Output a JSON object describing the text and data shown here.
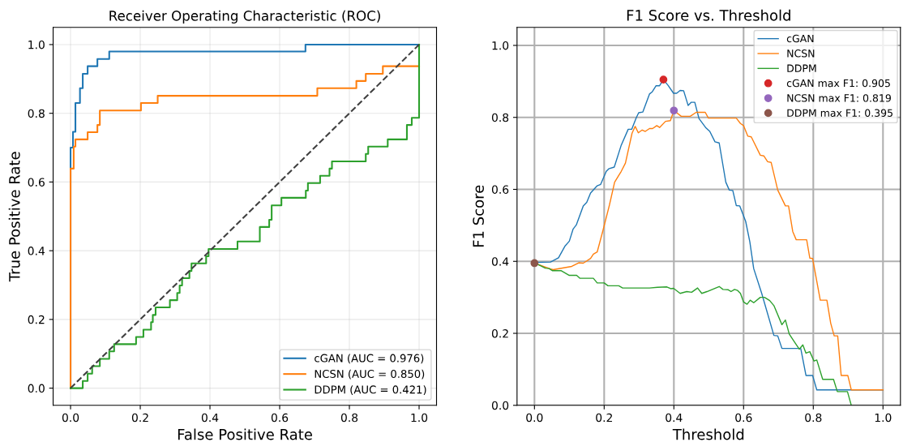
{
  "chart_data": [
    {
      "type": "line",
      "title": "Receiver Operating Characteristic (ROC)",
      "xlabel": "False Positive Rate",
      "ylabel": "True Positive Rate",
      "xlim": [
        -0.05,
        1.05
      ],
      "ylim": [
        -0.05,
        1.05
      ],
      "xticks": [
        {
          "value": 0,
          "label": "0.0"
        },
        {
          "value": 0.2,
          "label": "0.2"
        },
        {
          "value": 0.4,
          "label": "0.4"
        },
        {
          "value": 0.6,
          "label": "0.6"
        },
        {
          "value": 0.8,
          "label": "0.8"
        },
        {
          "value": 1,
          "label": "1.0"
        }
      ],
      "yticks": [
        {
          "value": 0,
          "label": "0.0"
        },
        {
          "value": 0.2,
          "label": "0.2"
        },
        {
          "value": 0.4,
          "label": "0.4"
        },
        {
          "value": 0.6,
          "label": "0.6"
        },
        {
          "value": 0.8,
          "label": "0.8"
        },
        {
          "value": 1,
          "label": "1.0"
        }
      ],
      "grid": true,
      "legend": "bottom right",
      "series": [
        {
          "name": "cGAN (AUC = 0.976)",
          "color": "#1f77b4",
          "x": [
            0,
            0,
            0.007,
            0.007,
            0.014,
            0.014,
            0.027,
            0.027,
            0.035,
            0.035,
            0.049,
            0.049,
            0.077,
            0.077,
            0.111,
            0.111,
            0.674,
            0.674,
            1.0
          ],
          "values": [
            0,
            0.7,
            0.7,
            0.746,
            0.746,
            0.83,
            0.83,
            0.873,
            0.873,
            0.915,
            0.915,
            0.937,
            0.937,
            0.958,
            0.958,
            0.98,
            0.98,
            1.0,
            1.0
          ]
        },
        {
          "name": "NCSN (AUC = 0.850)",
          "color": "#ff7f0e",
          "x": [
            0,
            0,
            0.009,
            0.009,
            0.014,
            0.014,
            0.049,
            0.049,
            0.077,
            0.077,
            0.084,
            0.084,
            0.202,
            0.202,
            0.25,
            0.25,
            0.708,
            0.708,
            0.82,
            0.82,
            0.847,
            0.847,
            0.896,
            0.896,
            1.0
          ],
          "values": [
            0,
            0.639,
            0.639,
            0.703,
            0.703,
            0.724,
            0.724,
            0.745,
            0.745,
            0.766,
            0.766,
            0.808,
            0.808,
            0.83,
            0.83,
            0.851,
            0.851,
            0.873,
            0.873,
            0.894,
            0.894,
            0.915,
            0.915,
            0.937,
            0.937
          ]
        },
        {
          "name": "DDPM (AUC = 0.421)",
          "color": "#2ca02c",
          "x": [
            0,
            0.035,
            0.035,
            0.049,
            0.049,
            0.062,
            0.062,
            0.084,
            0.084,
            0.111,
            0.111,
            0.125,
            0.125,
            0.188,
            0.188,
            0.209,
            0.209,
            0.231,
            0.231,
            0.236,
            0.236,
            0.244,
            0.244,
            0.285,
            0.285,
            0.306,
            0.306,
            0.313,
            0.313,
            0.32,
            0.32,
            0.341,
            0.341,
            0.347,
            0.347,
            0.389,
            0.389,
            0.396,
            0.396,
            0.479,
            0.479,
            0.543,
            0.543,
            0.57,
            0.57,
            0.577,
            0.577,
            0.605,
            0.605,
            0.675,
            0.675,
            0.681,
            0.681,
            0.716,
            0.716,
            0.743,
            0.743,
            0.75,
            0.75,
            0.847,
            0.847,
            0.854,
            0.854,
            0.91,
            0.91,
            0.965,
            0.965,
            0.979,
            0.979,
            1.0,
            1.0
          ],
          "values": [
            0,
            0,
            0.021,
            0.021,
            0.042,
            0.042,
            0.064,
            0.064,
            0.085,
            0.085,
            0.107,
            0.107,
            0.128,
            0.128,
            0.149,
            0.149,
            0.17,
            0.17,
            0.192,
            0.192,
            0.213,
            0.213,
            0.235,
            0.235,
            0.256,
            0.256,
            0.277,
            0.277,
            0.299,
            0.299,
            0.32,
            0.32,
            0.341,
            0.341,
            0.363,
            0.363,
            0.384,
            0.384,
            0.405,
            0.405,
            0.427,
            0.427,
            0.469,
            0.469,
            0.49,
            0.49,
            0.532,
            0.532,
            0.554,
            0.554,
            0.575,
            0.575,
            0.597,
            0.597,
            0.618,
            0.618,
            0.639,
            0.639,
            0.66,
            0.66,
            0.682,
            0.682,
            0.703,
            0.703,
            0.724,
            0.724,
            0.766,
            0.766,
            0.787,
            0.787,
            1.0
          ]
        },
        {
          "color": "#404040",
          "line_style": "dashed",
          "x": [
            0,
            1
          ],
          "values": [
            0,
            1
          ]
        }
      ]
    },
    {
      "type": "line",
      "title": "F1 Score vs. Threshold",
      "xlabel": "Threshold",
      "ylabel": "F1 Score",
      "xlim": [
        -0.05,
        1.05
      ],
      "ylim": [
        0,
        1.05
      ],
      "xticks": [
        {
          "value": 0,
          "label": "0.0"
        },
        {
          "value": 0.2,
          "label": "0.2"
        },
        {
          "value": 0.4,
          "label": "0.4"
        },
        {
          "value": 0.6,
          "label": "0.6"
        },
        {
          "value": 0.8,
          "label": "0.8"
        },
        {
          "value": 1,
          "label": "1.0"
        }
      ],
      "yticks": [
        {
          "value": 0,
          "label": "0.0"
        },
        {
          "value": 0.2,
          "label": "0.2"
        },
        {
          "value": 0.4,
          "label": "0.4"
        },
        {
          "value": 0.6,
          "label": "0.6"
        },
        {
          "value": 0.8,
          "label": "0.8"
        },
        {
          "value": 1,
          "label": "1.0"
        }
      ],
      "grid": true,
      "legend": "top right",
      "series": [
        {
          "name": "cGAN",
          "color": "#1f77b4",
          "x": [
            0,
            0.046,
            0.069,
            0.088,
            0.1,
            0.111,
            0.12,
            0.14,
            0.15,
            0.161,
            0.18,
            0.19,
            0.206,
            0.213,
            0.229,
            0.249,
            0.269,
            0.279,
            0.292,
            0.299,
            0.311,
            0.33,
            0.338,
            0.349,
            0.359,
            0.37,
            0.384,
            0.399,
            0.408,
            0.418,
            0.428,
            0.441,
            0.45,
            0.46,
            0.472,
            0.491,
            0.503,
            0.518,
            0.53,
            0.549,
            0.559,
            0.569,
            0.579,
            0.589,
            0.606,
            0.618,
            0.629,
            0.652,
            0.687,
            0.698,
            0.71,
            0.764,
            0.779,
            0.798,
            0.81,
            1.0
          ],
          "values": [
            0.397,
            0.398,
            0.41,
            0.443,
            0.456,
            0.49,
            0.501,
            0.554,
            0.564,
            0.59,
            0.61,
            0.614,
            0.65,
            0.657,
            0.662,
            0.723,
            0.767,
            0.767,
            0.799,
            0.813,
            0.815,
            0.865,
            0.871,
            0.888,
            0.888,
            0.905,
            0.888,
            0.867,
            0.867,
            0.875,
            0.874,
            0.833,
            0.842,
            0.842,
            0.797,
            0.772,
            0.761,
            0.732,
            0.729,
            0.62,
            0.598,
            0.597,
            0.555,
            0.554,
            0.511,
            0.454,
            0.38,
            0.311,
            0.194,
            0.193,
            0.158,
            0.158,
            0.083,
            0.083,
            0.043,
            0.043
          ]
        },
        {
          "name": "NCSN",
          "color": "#ff7f0e",
          "x": [
            0,
            0.046,
            0.054,
            0.107,
            0.127,
            0.14,
            0.161,
            0.169,
            0.18,
            0.196,
            0.215,
            0.23,
            0.249,
            0.261,
            0.28,
            0.289,
            0.298,
            0.309,
            0.318,
            0.33,
            0.339,
            0.351,
            0.359,
            0.376,
            0.39,
            0.4,
            0.421,
            0.447,
            0.464,
            0.49,
            0.499,
            0.579,
            0.591,
            0.6,
            0.612,
            0.622,
            0.648,
            0.658,
            0.669,
            0.679,
            0.698,
            0.72,
            0.729,
            0.741,
            0.751,
            0.781,
            0.79,
            0.798,
            0.82,
            0.839,
            0.85,
            0.86,
            0.87,
            0.88,
            0.899,
            0.909,
            1.0
          ],
          "values": [
            0.395,
            0.379,
            0.377,
            0.386,
            0.396,
            0.395,
            0.408,
            0.42,
            0.426,
            0.484,
            0.556,
            0.62,
            0.65,
            0.673,
            0.756,
            0.775,
            0.757,
            0.765,
            0.761,
            0.769,
            0.769,
            0.777,
            0.772,
            0.789,
            0.791,
            0.819,
            0.803,
            0.803,
            0.814,
            0.814,
            0.798,
            0.798,
            0.783,
            0.777,
            0.748,
            0.746,
            0.695,
            0.693,
            0.677,
            0.675,
            0.598,
            0.554,
            0.554,
            0.483,
            0.46,
            0.46,
            0.409,
            0.408,
            0.292,
            0.292,
            0.228,
            0.193,
            0.193,
            0.083,
            0.083,
            0.043,
            0.043
          ]
        },
        {
          "name": "DDPM",
          "color": "#2ca02c",
          "x": [
            0,
            0.015,
            0.031,
            0.042,
            0.052,
            0.077,
            0.1,
            0.121,
            0.13,
            0.169,
            0.18,
            0.2,
            0.211,
            0.242,
            0.253,
            0.33,
            0.353,
            0.38,
            0.391,
            0.399,
            0.418,
            0.437,
            0.451,
            0.468,
            0.48,
            0.495,
            0.53,
            0.541,
            0.556,
            0.564,
            0.574,
            0.583,
            0.591,
            0.6,
            0.61,
            0.619,
            0.629,
            0.648,
            0.66,
            0.675,
            0.687,
            0.71,
            0.72,
            0.731,
            0.744,
            0.76,
            0.77,
            0.779,
            0.79,
            0.802,
            0.81,
            0.827,
            0.858,
            0.869,
            0.898,
            0.909
          ],
          "values": [
            0.395,
            0.389,
            0.381,
            0.38,
            0.374,
            0.374,
            0.361,
            0.361,
            0.353,
            0.353,
            0.34,
            0.34,
            0.332,
            0.332,
            0.326,
            0.326,
            0.328,
            0.329,
            0.324,
            0.325,
            0.311,
            0.316,
            0.314,
            0.326,
            0.311,
            0.316,
            0.33,
            0.322,
            0.321,
            0.316,
            0.322,
            0.319,
            0.311,
            0.287,
            0.281,
            0.292,
            0.285,
            0.3,
            0.3,
            0.291,
            0.277,
            0.224,
            0.237,
            0.198,
            0.179,
            0.156,
            0.168,
            0.145,
            0.149,
            0.123,
            0.126,
            0.072,
            0.072,
            0.038,
            0.038,
            0
          ]
        },
        {
          "name": "cGAN max F1: 0.905",
          "type": "scatter",
          "marker": "circle",
          "color": "#d62728",
          "x": [
            0.37
          ],
          "values": [
            0.905
          ]
        },
        {
          "name": "NCSN max F1: 0.819",
          "type": "scatter",
          "marker": "circle",
          "color": "#9467bd",
          "x": [
            0.4
          ],
          "values": [
            0.819
          ]
        },
        {
          "name": "DDPM max F1: 0.395",
          "type": "scatter",
          "marker": "circle",
          "color": "#8c564b",
          "x": [
            0
          ],
          "values": [
            0.395
          ]
        }
      ]
    }
  ]
}
